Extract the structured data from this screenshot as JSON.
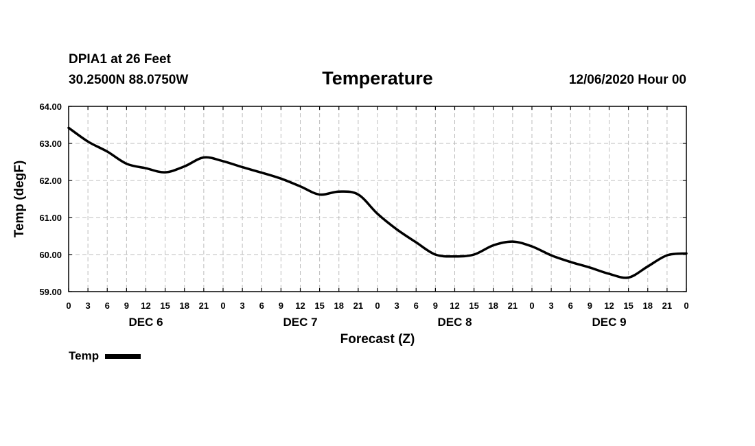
{
  "header": {
    "station": "DPIA1 at 26 Feet",
    "coords": "30.2500N 88.0750W",
    "datetime": "12/06/2020 Hour 00"
  },
  "legend": {
    "label": "Temp",
    "color": "#000000"
  },
  "chart_data": {
    "type": "line",
    "title": "Temperature",
    "xlabel": "Forecast (Z)",
    "ylabel": "Temp (degF)",
    "ylim": [
      59.0,
      64.0
    ],
    "xlim": [
      0,
      96
    ],
    "yticks": [
      "59.00",
      "60.00",
      "61.00",
      "62.00",
      "63.00",
      "64.00"
    ],
    "xtick_labels": [
      "0",
      "3",
      "6",
      "9",
      "12",
      "15",
      "18",
      "21",
      "0",
      "3",
      "6",
      "9",
      "12",
      "15",
      "18",
      "21",
      "0",
      "3",
      "6",
      "9",
      "12",
      "15",
      "18",
      "21",
      "0",
      "3",
      "6",
      "9",
      "12",
      "15",
      "18",
      "21",
      "0"
    ],
    "day_labels": [
      {
        "label": "DEC 6",
        "hour": 12
      },
      {
        "label": "DEC 7",
        "hour": 36
      },
      {
        "label": "DEC 8",
        "hour": 60
      },
      {
        "label": "DEC 9",
        "hour": 84
      }
    ],
    "grid": true,
    "series": [
      {
        "name": "Temp",
        "x": [
          0,
          3,
          6,
          9,
          12,
          15,
          18,
          21,
          24,
          27,
          30,
          33,
          36,
          39,
          42,
          45,
          48,
          51,
          54,
          57,
          60,
          63,
          66,
          69,
          72,
          75,
          78,
          81,
          84,
          87,
          90,
          93,
          96
        ],
        "values": [
          63.42,
          63.05,
          62.78,
          62.45,
          62.33,
          62.22,
          62.38,
          62.62,
          62.52,
          62.36,
          62.21,
          62.05,
          61.84,
          61.62,
          61.7,
          61.62,
          61.1,
          60.68,
          60.33,
          60.0,
          59.95,
          60.0,
          60.25,
          60.35,
          60.22,
          59.98,
          59.8,
          59.65,
          59.48,
          59.38,
          59.68,
          59.98,
          60.03
        ]
      }
    ]
  }
}
